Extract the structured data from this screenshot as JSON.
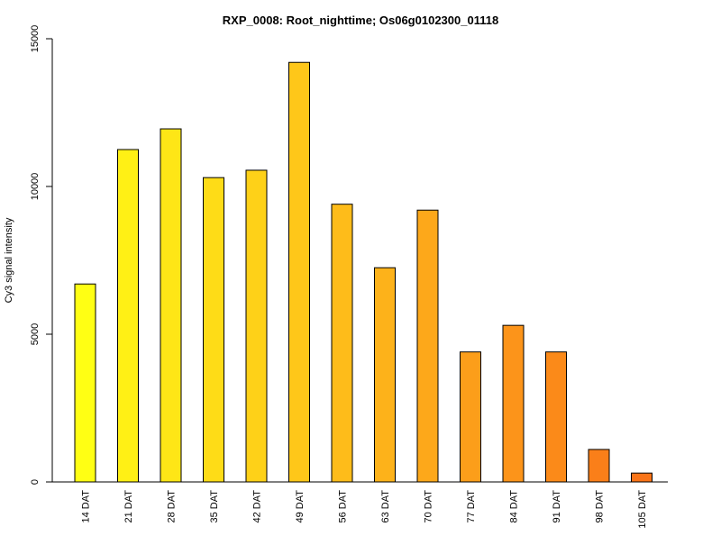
{
  "chart_data": {
    "type": "bar",
    "title": "RXP_0008: Root_nighttime; Os06g0102300_01118",
    "xlabel": "",
    "ylabel": "Cy3 signal intensity",
    "ylim": [
      0,
      15000
    ],
    "yticks": [
      0,
      5000,
      10000,
      15000
    ],
    "categories": [
      "14 DAT",
      "21 DAT",
      "28 DAT",
      "35 DAT",
      "42 DAT",
      "49 DAT",
      "56 DAT",
      "63 DAT",
      "70 DAT",
      "77 DAT",
      "84 DAT",
      "91 DAT",
      "98 DAT",
      "105 DAT"
    ],
    "values": [
      6700,
      11250,
      11950,
      10300,
      10550,
      14200,
      9400,
      7250,
      9200,
      4400,
      5300,
      4400,
      1100,
      300
    ],
    "colors": [
      "#FFFF14",
      "#FFF015",
      "#FEE616",
      "#FEDC17",
      "#FED118",
      "#FEC719",
      "#FEBC1A",
      "#FDB21A",
      "#FDA81A",
      "#FC9E1A",
      "#FC941A",
      "#FB8A19",
      "#FA7F19",
      "#F97418"
    ],
    "grid": false,
    "legend": "none"
  }
}
